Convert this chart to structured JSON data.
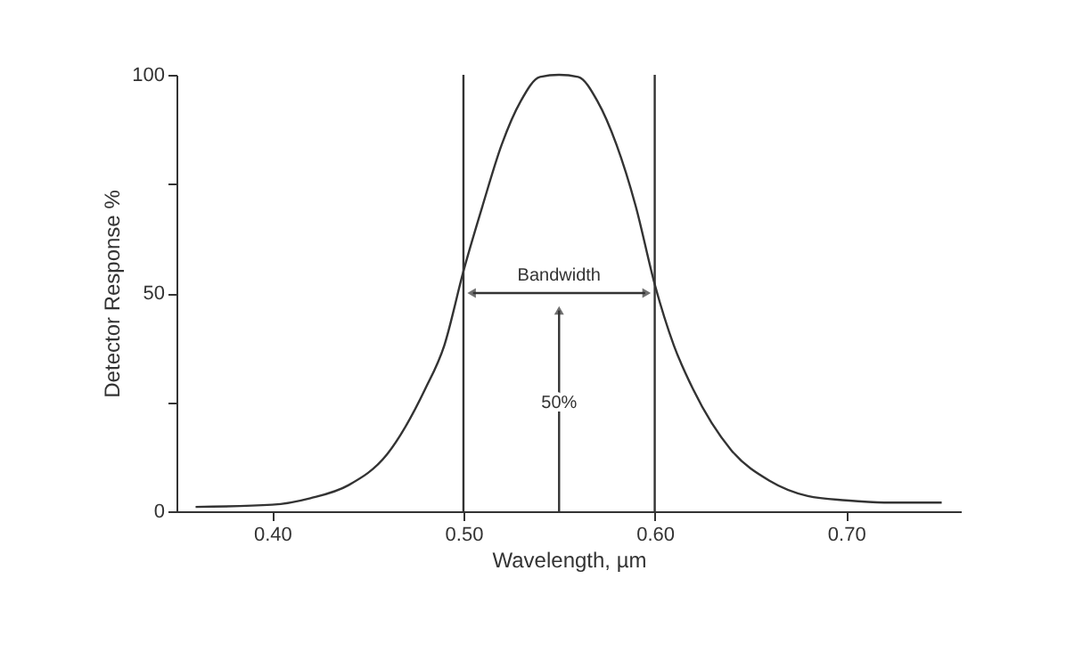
{
  "chart_data": {
    "type": "line",
    "xlabel": "Wavelength, µm",
    "ylabel": "Detector Response %",
    "x": [
      0.36,
      0.4,
      0.42,
      0.44,
      0.46,
      0.48,
      0.49,
      0.5,
      0.51,
      0.52,
      0.53,
      0.54,
      0.55,
      0.56,
      0.57,
      0.58,
      0.59,
      0.6,
      0.61,
      0.62,
      0.64,
      0.66,
      0.68,
      0.7,
      0.72,
      0.75
    ],
    "series": [
      {
        "color": "#333333",
        "values": [
          1,
          1.5,
          3,
          6,
          13,
          28,
          38,
          55,
          70,
          84,
          94,
          99.5,
          100,
          99.5,
          94,
          84,
          70,
          52,
          38,
          28,
          14,
          7,
          3.5,
          2.5,
          2,
          2
        ]
      }
    ],
    "xlim": [
      0.35,
      0.76
    ],
    "xticks": [
      {
        "value": 0.4,
        "label": "0.40"
      },
      {
        "value": 0.5,
        "label": "0.50"
      },
      {
        "value": 0.6,
        "label": "0.60"
      },
      {
        "value": 0.7,
        "label": "0.70"
      }
    ],
    "ylim": [
      0,
      100
    ],
    "yticks": [
      0,
      {
        "value": 25,
        "label": null
      },
      50,
      {
        "value": 75,
        "label": null
      },
      100
    ],
    "ref_lines": [
      {
        "axis": "x",
        "value": 0.5,
        "color": "#333333"
      },
      {
        "axis": "x",
        "value": 0.6,
        "color": "#333333"
      }
    ],
    "annotations": [
      "Bandwidth",
      "50%"
    ],
    "grid": false,
    "legend": false,
    "marker": "none",
    "line_style": "solid"
  }
}
